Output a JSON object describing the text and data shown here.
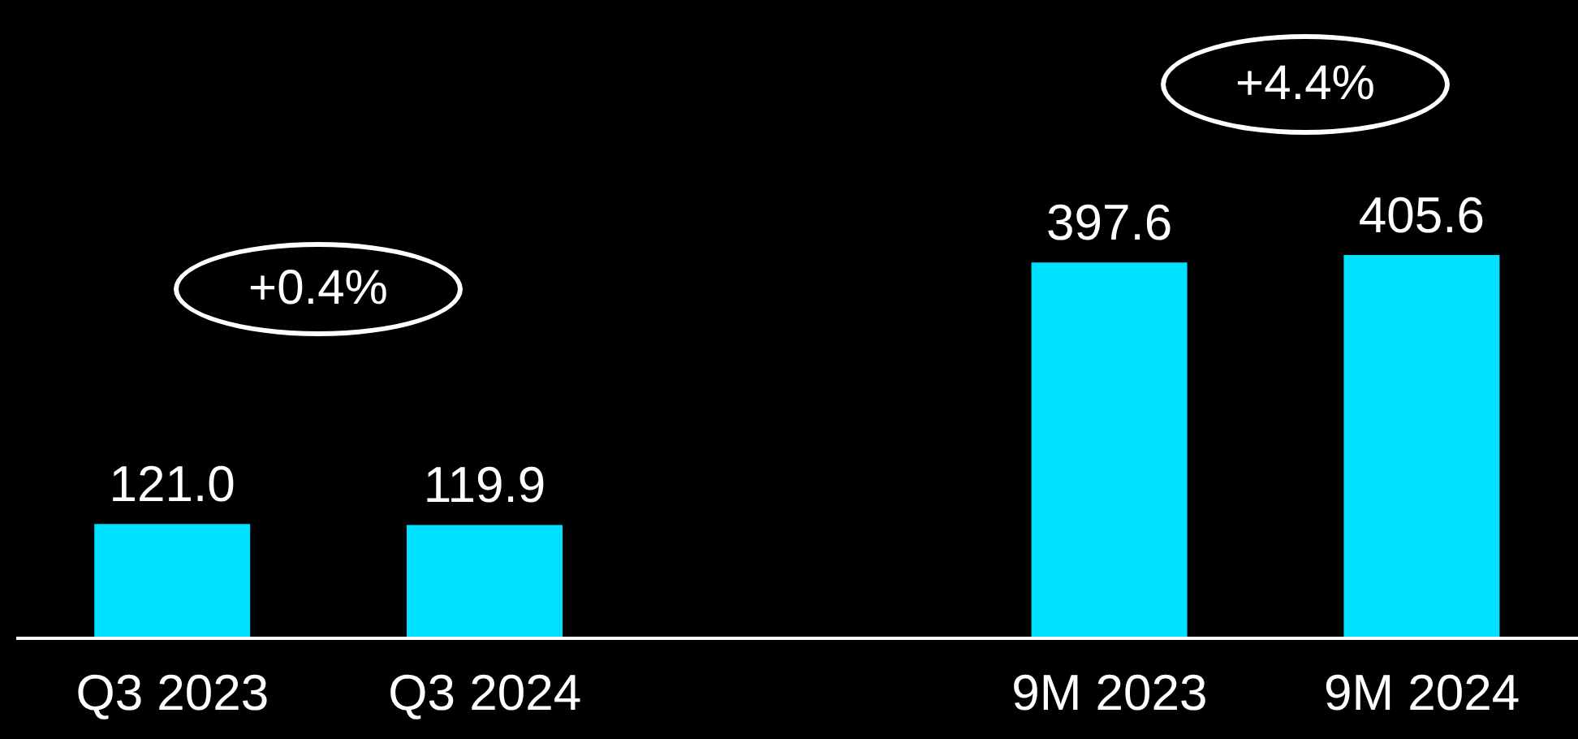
{
  "chart_data": {
    "type": "bar",
    "categories": [
      "Q3 2023",
      "Q3 2024",
      null,
      "9M 2023",
      "9M 2024"
    ],
    "values": [
      121.0,
      119.9,
      null,
      397.6,
      405.6
    ],
    "value_labels": [
      "121.0",
      "119.9",
      null,
      "397.6",
      "405.6"
    ],
    "color": "#00e0ff",
    "annotations": [
      "+0.4%",
      "+4.4%"
    ]
  }
}
